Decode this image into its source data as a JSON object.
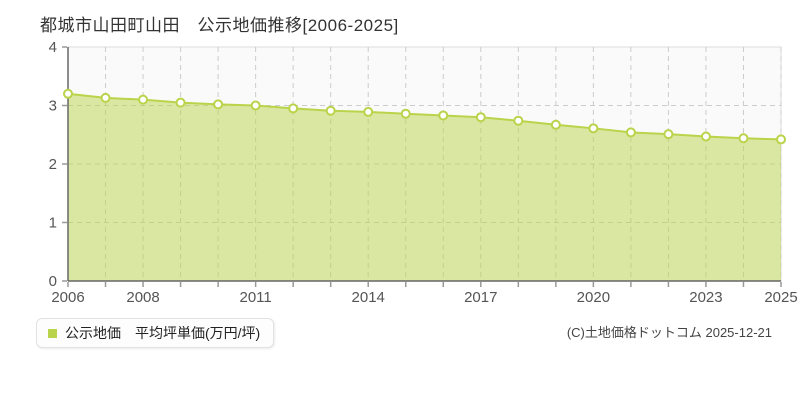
{
  "title": "都城市山田町山田　公示地価推移[2006-2025]",
  "legend": {
    "label": "公示地価　平均坪単価(万円/坪)"
  },
  "copyright": "(C)土地価格ドットコム 2025-12-21",
  "chart_data": {
    "type": "area",
    "title": "都城市山田町山田 公示地価推移[2006-2025]",
    "series_name": "公示地価 平均坪単価(万円/坪)",
    "x": [
      2006,
      2007,
      2008,
      2009,
      2010,
      2011,
      2012,
      2013,
      2014,
      2015,
      2016,
      2017,
      2018,
      2019,
      2020,
      2021,
      2022,
      2023,
      2024,
      2025
    ],
    "values": [
      3.2,
      3.13,
      3.1,
      3.05,
      3.02,
      3.0,
      2.95,
      2.91,
      2.89,
      2.86,
      2.83,
      2.8,
      2.74,
      2.67,
      2.61,
      2.54,
      2.51,
      2.47,
      2.44,
      2.42
    ],
    "xlabel": "",
    "ylabel": "",
    "ylim": [
      0,
      4
    ],
    "y_ticks": [
      0,
      1,
      2,
      3,
      4
    ],
    "x_tick_labels": [
      2006,
      2008,
      2011,
      2014,
      2017,
      2020,
      2023,
      2025
    ],
    "grid": true,
    "legend_position": "bottom-left",
    "colors": {
      "line": "#b9d44a",
      "fill_opacity": 0.5,
      "marker_fill": "#ffffff",
      "grid": "#cccccc",
      "axis": "#666666",
      "tick": "#999999",
      "tick_label": "#555555",
      "plot_bg": "#fafafa",
      "plot_border": "#dddddd"
    }
  }
}
